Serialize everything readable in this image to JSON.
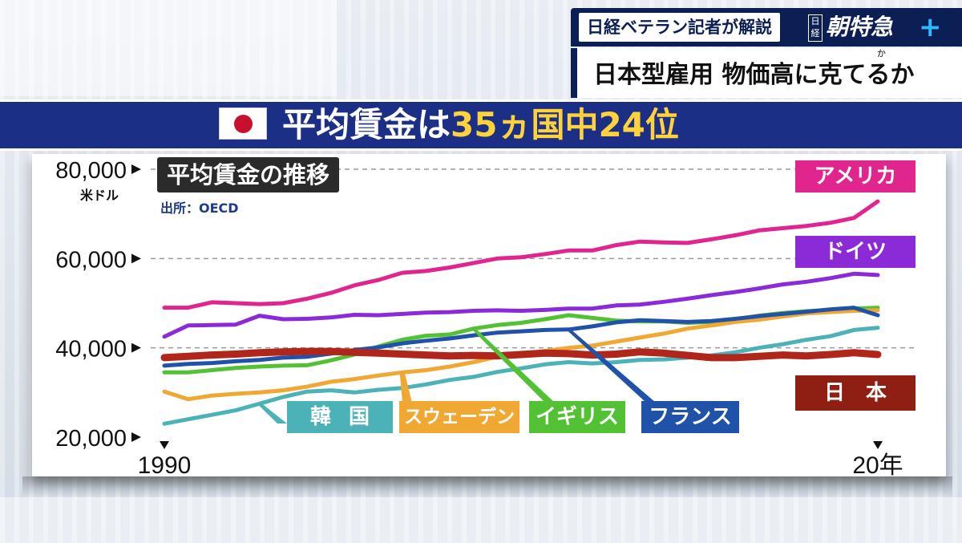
{
  "banner": {
    "label": "日経ベテラン記者が解説",
    "logo_small": "日経",
    "logo_main": "朝特急",
    "logo_plus": "+",
    "topic": "日本型雇用 物価高に克てるか",
    "ruby": "か"
  },
  "headline": {
    "part1": "平均賃金は",
    "part2": "35ヵ国中24位"
  },
  "chart_title": "平均賃金の推移",
  "source": "出所：OECD",
  "unit": "米ドル",
  "colors": {
    "navy": "#1c2f86",
    "usa": "#e0258f",
    "germany": "#8b2bd8",
    "uk": "#52c234",
    "sweden": "#f0a832",
    "korea": "#4bb3b8",
    "france": "#1f52a8",
    "japan": "#b0261a"
  },
  "chart_data": {
    "type": "line",
    "title": "平均賃金の推移",
    "xlabel": "",
    "ylabel": "米ドル",
    "x": [
      1990,
      1991,
      1992,
      1993,
      1994,
      1995,
      1996,
      1997,
      1998,
      1999,
      2000,
      2001,
      2002,
      2003,
      2004,
      2005,
      2006,
      2007,
      2008,
      2009,
      2010,
      2011,
      2012,
      2013,
      2014,
      2015,
      2016,
      2017,
      2018,
      2019,
      2020
    ],
    "x_tick_labels": [
      "1990",
      "20年"
    ],
    "ylim": [
      20000,
      80000
    ],
    "y_ticks": [
      20000,
      40000,
      60000,
      80000
    ],
    "y_tick_labels": [
      "20,000",
      "40,000",
      "60,000",
      "80,000"
    ],
    "grid": "dashed horizontal at 40,000 / 60,000 / 80,000",
    "series": [
      {
        "name": "アメリカ",
        "color": "#e0258f",
        "values": [
          49000,
          49000,
          50200,
          50000,
          49800,
          50000,
          51000,
          52300,
          54000,
          55200,
          56800,
          57200,
          58000,
          59000,
          60000,
          60300,
          61000,
          61800,
          61800,
          63000,
          63800,
          63600,
          63500,
          64300,
          65200,
          66300,
          66800,
          67300,
          68000,
          69100,
          72800
        ]
      },
      {
        "name": "ドイツ",
        "color": "#8b2bd8",
        "values": [
          42500,
          45000,
          45100,
          45200,
          47200,
          46400,
          46500,
          46800,
          47400,
          47300,
          47600,
          47900,
          48000,
          48300,
          48400,
          48300,
          48500,
          48800,
          48800,
          49500,
          49700,
          50300,
          51000,
          51800,
          52500,
          53300,
          54200,
          54800,
          55600,
          56600,
          56300
        ]
      },
      {
        "name": "イギリス",
        "color": "#52c234",
        "values": [
          34500,
          34500,
          35000,
          35500,
          35800,
          36000,
          36100,
          37200,
          38500,
          40300,
          41800,
          42700,
          43000,
          44300,
          45100,
          45600,
          46400,
          47300,
          46700,
          46100,
          45900,
          45900,
          45600,
          45800,
          46300,
          47200,
          47800,
          48200,
          48500,
          48800,
          49000
        ]
      },
      {
        "name": "スウェーデン",
        "color": "#f0a832",
        "values": [
          30200,
          28500,
          29300,
          29700,
          30000,
          30500,
          31300,
          32400,
          33000,
          33800,
          34500,
          35000,
          35800,
          36800,
          38000,
          38700,
          39300,
          40000,
          40500,
          41400,
          42300,
          43200,
          44300,
          45000,
          45800,
          46300,
          47000,
          47700,
          48000,
          48300,
          48400
        ]
      },
      {
        "name": "韓国",
        "color": "#4bb3b8",
        "values": [
          23000,
          24000,
          25000,
          26000,
          27500,
          29000,
          30200,
          30500,
          30000,
          30600,
          31000,
          31800,
          32800,
          33500,
          34600,
          35400,
          36300,
          36800,
          36500,
          36800,
          37300,
          37400,
          37800,
          38300,
          39000,
          40000,
          40800,
          41800,
          42600,
          44000,
          44500
        ]
      },
      {
        "name": "フランス",
        "color": "#1f52a8",
        "values": [
          36000,
          36400,
          36600,
          37000,
          37300,
          37800,
          38000,
          38700,
          39500,
          40100,
          41000,
          41600,
          42100,
          42800,
          43400,
          43700,
          44000,
          44100,
          44800,
          45700,
          46200,
          46000,
          45800,
          46000,
          46500,
          47100,
          47600,
          48100,
          48600,
          49000,
          47300
        ]
      },
      {
        "name": "日本",
        "color": "#b0261a",
        "values": [
          37800,
          38100,
          38400,
          38600,
          38900,
          39100,
          39200,
          39200,
          39000,
          38800,
          38600,
          38400,
          38200,
          38300,
          38200,
          38500,
          38800,
          38700,
          38400,
          38600,
          39100,
          38800,
          38300,
          37800,
          37800,
          38100,
          38400,
          38200,
          38500,
          38900,
          38500
        ]
      }
    ],
    "legend_placement": "inline labels (right side and bottom)"
  }
}
